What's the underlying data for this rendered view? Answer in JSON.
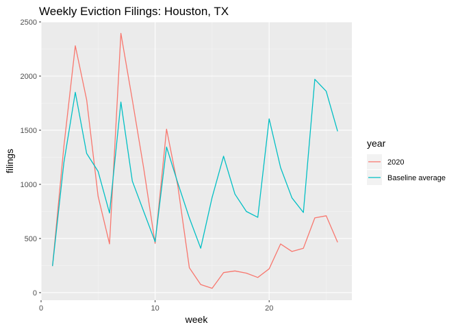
{
  "chart_data": {
    "type": "line",
    "title": "Weekly Eviction Filings: Houston, TX",
    "xlabel": "week",
    "ylabel": "filings",
    "xlim": [
      0,
      27.25
    ],
    "ylim": [
      -70,
      2500
    ],
    "xticks": [
      0,
      10,
      20
    ],
    "xminor": [
      5,
      15,
      25
    ],
    "yticks": [
      0,
      500,
      1000,
      1500,
      2000,
      2500
    ],
    "yminor": [
      250,
      750,
      1250,
      1750,
      2250
    ],
    "grid": true,
    "legend": {
      "title": "year",
      "placement": "right"
    },
    "x": [
      1,
      2,
      3,
      4,
      5,
      6,
      7,
      8,
      9,
      10,
      11,
      12,
      13,
      14,
      15,
      16,
      17,
      18,
      19,
      20,
      21,
      22,
      23,
      24,
      25,
      26
    ],
    "series": [
      {
        "name": "2020",
        "color": "#F8766D",
        "values": [
          245,
          1350,
          2280,
          1780,
          890,
          450,
          2395,
          1780,
          1150,
          455,
          1510,
          980,
          230,
          75,
          40,
          185,
          200,
          180,
          140,
          220,
          450,
          380,
          410,
          690,
          710,
          465
        ]
      },
      {
        "name": "Baseline average",
        "color": "#00BFC4",
        "values": [
          245,
          1200,
          1850,
          1285,
          1120,
          735,
          1760,
          1030,
          750,
          470,
          1345,
          1010,
          690,
          410,
          880,
          1260,
          910,
          750,
          695,
          1605,
          1155,
          875,
          740,
          1970,
          1860,
          1490
        ]
      }
    ]
  }
}
